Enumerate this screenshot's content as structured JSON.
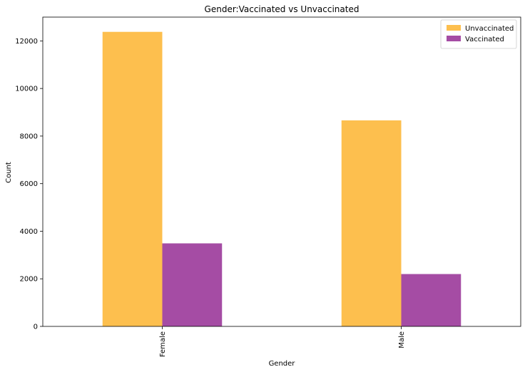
{
  "chart_data": {
    "type": "bar",
    "title": "Gender:Vaccinated vs Unvaccinated",
    "xlabel": "Gender",
    "ylabel": "Count",
    "categories": [
      "Female",
      "Male"
    ],
    "series": [
      {
        "name": "Unvaccinated",
        "values": [
          12380,
          8660
        ],
        "color": "#fdbf4e"
      },
      {
        "name": "Vaccinated",
        "values": [
          3490,
          2200
        ],
        "color": "#a54ca4"
      }
    ],
    "ylim": [
      0,
      13000
    ],
    "yticks": [
      0,
      2000,
      4000,
      6000,
      8000,
      10000,
      12000
    ],
    "grid": false,
    "legend_position": "top-right"
  }
}
